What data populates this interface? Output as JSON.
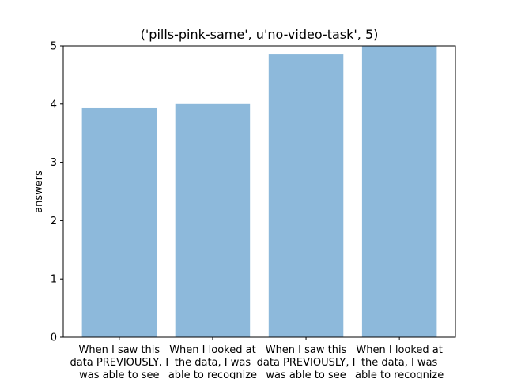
{
  "chart_data": {
    "type": "bar",
    "title": "('pills-pink-same', u'no-video-task', 5)",
    "xlabel": "",
    "ylabel": "answers",
    "ylim": [
      0,
      5
    ],
    "yticks": [
      0,
      1,
      2,
      3,
      4,
      5
    ],
    "grid": false,
    "legend": "none",
    "bar_color": "#8db9db",
    "categories": [
      [
        "When I saw this",
        "data PREVIOUSLY, I",
        "was able to see"
      ],
      [
        "When I looked at",
        "the data, I was",
        "able to recognize"
      ],
      [
        "When I saw this",
        "data PREVIOUSLY, I",
        "was able to see"
      ],
      [
        "When I looked at",
        "the data, I was",
        "able to recognize"
      ]
    ],
    "values": [
      3.93,
      4.0,
      4.85,
      5.0
    ]
  }
}
